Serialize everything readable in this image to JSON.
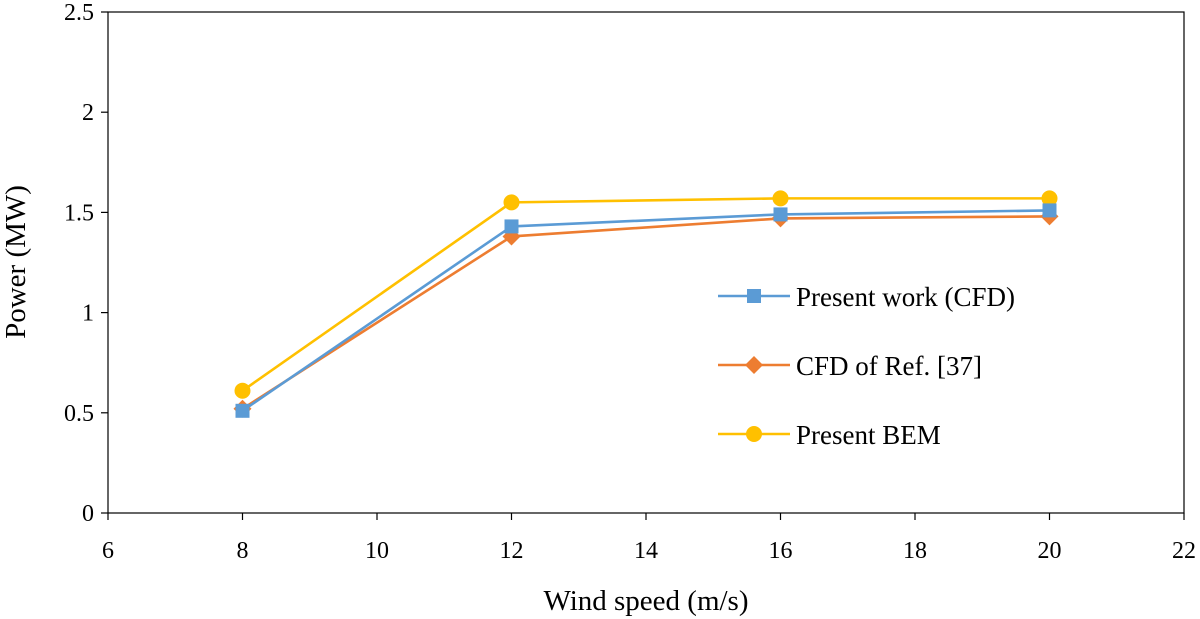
{
  "chart_data": {
    "type": "line",
    "title": "",
    "xlabel": "Wind speed (m/s)",
    "ylabel": "Power (MW)",
    "xlim": [
      6,
      22
    ],
    "ylim": [
      0,
      2.5
    ],
    "xticks": [
      6,
      8,
      10,
      12,
      14,
      16,
      18,
      20,
      22
    ],
    "yticks": [
      0,
      0.5,
      1,
      1.5,
      2,
      2.5
    ],
    "xtick_labels": [
      "6",
      "8",
      "10",
      "12",
      "14",
      "16",
      "18",
      "20",
      "22"
    ],
    "ytick_labels": [
      "0",
      "0.5",
      "1",
      "1.5",
      "2",
      "2.5"
    ],
    "grid": false,
    "legend_position": "right",
    "x": [
      8,
      12,
      16,
      20
    ],
    "series": [
      {
        "name": "Present work (CFD)",
        "values": [
          0.51,
          1.43,
          1.49,
          1.51
        ],
        "color": "#5b9bd5",
        "marker": "square"
      },
      {
        "name": "CFD of Ref. [37]",
        "values": [
          0.52,
          1.38,
          1.47,
          1.48
        ],
        "color": "#ed7d31",
        "marker": "diamond"
      },
      {
        "name": "Present BEM",
        "values": [
          0.61,
          1.55,
          1.57,
          1.57
        ],
        "color": "#ffc000",
        "marker": "circle"
      }
    ]
  }
}
